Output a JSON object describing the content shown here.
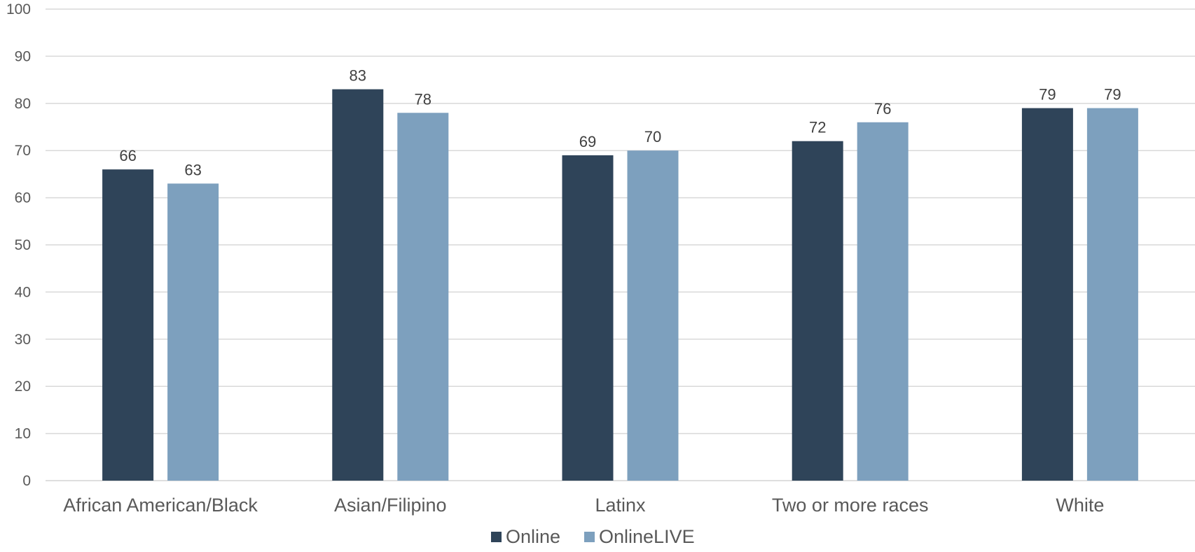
{
  "chart_data": {
    "type": "bar",
    "categories": [
      "African American/Black",
      "Asian/Filipino",
      "Latinx",
      "Two or more races",
      "White"
    ],
    "series": [
      {
        "name": "Online",
        "values": [
          66,
          83,
          69,
          72,
          79
        ],
        "color": "#2f4459"
      },
      {
        "name": "OnlineLIVE",
        "values": [
          63,
          78,
          70,
          76,
          79
        ],
        "color": "#7da0be"
      }
    ],
    "y_ticks": [
      "0",
      "10",
      "20",
      "30",
      "40",
      "50",
      "60",
      "70",
      "80",
      "90",
      "100"
    ],
    "ylim": [
      0,
      100
    ],
    "grid": true,
    "gridline_color": "#d9d9d9",
    "data_labels": true,
    "legend": {
      "position": "bottom"
    },
    "title": "",
    "xlabel": "",
    "ylabel": ""
  }
}
